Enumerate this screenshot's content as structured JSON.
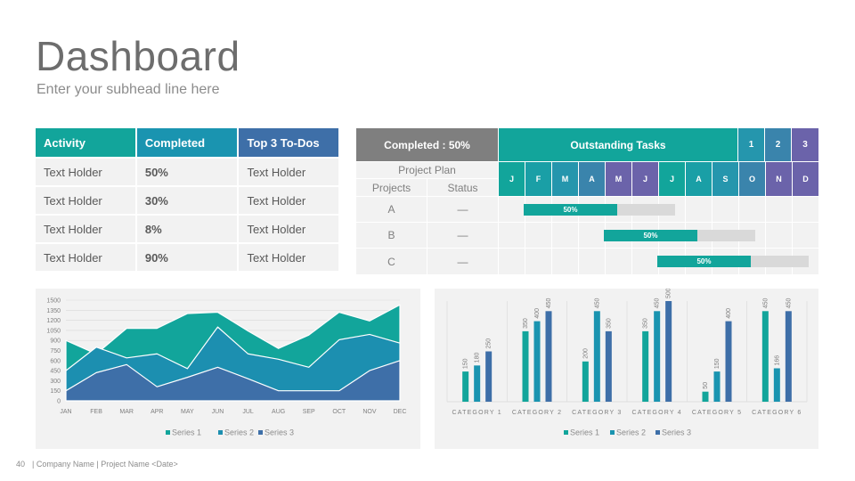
{
  "header": {
    "title": "Dashboard",
    "subhead": "Enter your subhead line here"
  },
  "activity_table": {
    "headers": [
      "Activity",
      "Completed",
      "Top 3 To-Dos"
    ],
    "header_colors": [
      "#12a59b",
      "#1a94b0",
      "#3e6fa8"
    ],
    "rows": [
      [
        "Text Holder",
        "50%",
        "Text Holder"
      ],
      [
        "Text Holder",
        "30%",
        "Text Holder"
      ],
      [
        "Text Holder",
        "8%",
        "Text Holder"
      ],
      [
        "Text Holder",
        "90%",
        "Text Holder"
      ]
    ]
  },
  "gantt": {
    "completed_label": "Completed : 50%",
    "outstanding_label": "Outstanding Tasks",
    "quarters": [
      "1",
      "2",
      "3"
    ],
    "project_plan_label": "Project Plan",
    "projects_label": "Projects",
    "status_label": "Status",
    "months": [
      "J",
      "F",
      "M",
      "A",
      "M",
      "J",
      "J",
      "A",
      "S",
      "O",
      "N",
      "D"
    ],
    "month_colors": [
      "#12a59b",
      "#1a9fa6",
      "#2596ad",
      "#3a84ac",
      "#6b63aa",
      "#6b63aa",
      "#12a59b",
      "#1a9fa6",
      "#2596ad",
      "#3a84ac",
      "#6b63aa",
      "#6b63aa"
    ],
    "quarter_colors": [
      "#2596ad",
      "#3a84ac",
      "#6b63aa"
    ],
    "projects": [
      {
        "name": "A",
        "status": "—",
        "bar_label": "50%",
        "start_month": 1,
        "span_months": 6,
        "progress": 0.5
      },
      {
        "name": "B",
        "status": "—",
        "bar_label": "50%",
        "start_month": 4,
        "span_months": 6,
        "progress": 0.5
      },
      {
        "name": "C",
        "status": "—",
        "bar_label": "50%",
        "start_month": 6,
        "span_months": 6,
        "progress": 0.5
      }
    ]
  },
  "chart_data": [
    {
      "type": "area",
      "categories": [
        "JAN",
        "FEB",
        "MAR",
        "APR",
        "MAY",
        "JUN",
        "JUL",
        "AUG",
        "SEP",
        "OCT",
        "NOV",
        "DEC"
      ],
      "series": [
        {
          "name": "Series 1",
          "color": "#12a59b",
          "values": [
            900,
            700,
            1080,
            1080,
            1300,
            1320,
            1040,
            780,
            980,
            1320,
            1190,
            1430
          ]
        },
        {
          "name": "Series 2",
          "color": "#1c8fb0",
          "values": [
            450,
            800,
            640,
            700,
            480,
            1100,
            700,
            620,
            500,
            910,
            990,
            860
          ]
        },
        {
          "name": "Series 3",
          "color": "#3e6fa8",
          "values": [
            150,
            420,
            540,
            210,
            350,
            500,
            330,
            150,
            150,
            150,
            450,
            600
          ]
        }
      ],
      "ylim": [
        0,
        1500
      ],
      "yticks": [
        0,
        150,
        300,
        450,
        600,
        750,
        900,
        1050,
        1200,
        1350,
        1500
      ],
      "legend": "bottom"
    },
    {
      "type": "bar",
      "categories": [
        "CATEGORY 1",
        "CATEGORY 2",
        "CATEGORY 3",
        "CATEGORY 4",
        "CATEGORY 5",
        "CATEGORY 6"
      ],
      "series": [
        {
          "name": "Series 1",
          "color": "#12a59b",
          "values": [
            150,
            350,
            200,
            350,
            50,
            450
          ]
        },
        {
          "name": "Series 2",
          "color": "#1a94b0",
          "values": [
            180,
            400,
            450,
            450,
            150,
            166
          ]
        },
        {
          "name": "Series 3",
          "color": "#3e6fa8",
          "values": [
            250,
            450,
            350,
            500,
            400,
            450
          ]
        }
      ],
      "ylim": [
        0,
        500
      ],
      "data_labels": true,
      "legend": "bottom"
    }
  ],
  "footer": {
    "page_number": "40",
    "text": "| Company Name | Project Name <Date>"
  }
}
